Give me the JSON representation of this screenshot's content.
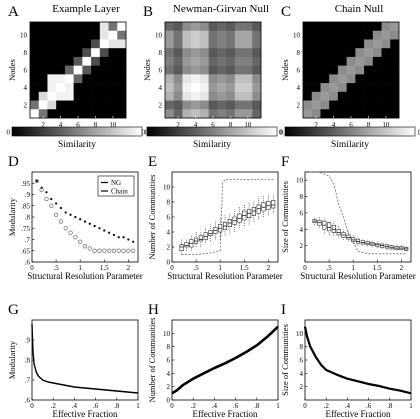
{
  "chart_data": [
    {
      "panel": "A",
      "type": "heatmap",
      "title": "Example Layer",
      "xlabel": "Nodes",
      "ylabel": "Nodes",
      "xticks": [
        2,
        4,
        6,
        8,
        10
      ],
      "yticks": [
        2,
        4,
        6,
        8,
        10
      ],
      "size": 11,
      "matrix": [
        [
          1,
          0.45,
          0,
          0,
          0,
          0,
          0,
          0,
          0,
          0,
          0
        ],
        [
          0.45,
          1,
          0.85,
          0,
          0,
          0,
          0,
          0,
          0,
          0,
          0
        ],
        [
          0,
          0.85,
          1,
          0.95,
          0.95,
          0,
          0,
          0,
          0,
          0,
          0
        ],
        [
          0,
          0,
          0.95,
          1,
          0.95,
          0,
          0,
          0,
          0,
          0,
          0
        ],
        [
          0,
          0,
          0.95,
          0.95,
          1,
          0.4,
          0,
          0,
          0,
          0,
          0
        ],
        [
          0,
          0,
          0,
          0,
          0.4,
          1,
          0.35,
          0,
          0,
          0,
          0
        ],
        [
          0,
          0,
          0,
          0,
          0,
          0.35,
          1,
          0.3,
          0,
          0,
          0
        ],
        [
          0,
          0,
          0,
          0,
          0,
          0,
          0.3,
          1,
          0.3,
          0,
          0
        ],
        [
          0,
          0,
          0,
          0,
          0,
          0,
          0,
          0.3,
          1,
          0.9,
          0.9
        ],
        [
          0,
          0,
          0,
          0,
          0,
          0,
          0,
          0,
          0.9,
          1,
          0.45
        ],
        [
          0,
          0,
          0,
          0,
          0,
          0,
          0,
          0,
          0.9,
          0.45,
          1
        ]
      ],
      "colorbar": {
        "min": "0",
        "max": "1",
        "label": "Similarity"
      }
    },
    {
      "panel": "B",
      "type": "heatmap",
      "title": "Newman-Girvan Null",
      "xlabel": "Nodes",
      "ylabel": "Nodes",
      "xticks": [
        2,
        4,
        6,
        8,
        10
      ],
      "yticks": [
        2,
        4,
        6,
        8,
        10
      ],
      "size": 11,
      "matrix": [
        [
          0.55,
          0.4,
          0.7,
          0.75,
          0.7,
          0.45,
          0.5,
          0.45,
          0.6,
          0.6,
          0.4
        ],
        [
          0.4,
          0.35,
          0.55,
          0.6,
          0.55,
          0.35,
          0.4,
          0.35,
          0.45,
          0.45,
          0.35
        ],
        [
          0.7,
          0.55,
          0.9,
          0.95,
          0.9,
          0.55,
          0.6,
          0.55,
          0.75,
          0.75,
          0.55
        ],
        [
          0.75,
          0.6,
          0.95,
          1,
          0.95,
          0.6,
          0.65,
          0.6,
          0.8,
          0.8,
          0.6
        ],
        [
          0.7,
          0.55,
          0.9,
          0.95,
          0.9,
          0.55,
          0.6,
          0.55,
          0.75,
          0.75,
          0.55
        ],
        [
          0.45,
          0.35,
          0.55,
          0.6,
          0.55,
          0.35,
          0.4,
          0.35,
          0.45,
          0.45,
          0.35
        ],
        [
          0.5,
          0.4,
          0.6,
          0.65,
          0.6,
          0.4,
          0.45,
          0.4,
          0.5,
          0.5,
          0.4
        ],
        [
          0.45,
          0.35,
          0.55,
          0.6,
          0.55,
          0.35,
          0.4,
          0.35,
          0.45,
          0.45,
          0.35
        ],
        [
          0.6,
          0.45,
          0.75,
          0.8,
          0.75,
          0.45,
          0.5,
          0.45,
          0.65,
          0.65,
          0.45
        ],
        [
          0.6,
          0.45,
          0.75,
          0.8,
          0.75,
          0.45,
          0.5,
          0.45,
          0.65,
          0.65,
          0.45
        ],
        [
          0.4,
          0.35,
          0.55,
          0.6,
          0.55,
          0.35,
          0.4,
          0.35,
          0.45,
          0.45,
          0.35
        ]
      ],
      "colorbar": {
        "min": "0",
        "max": "0.12",
        "label": "Similarity"
      }
    },
    {
      "panel": "C",
      "type": "heatmap",
      "title": "Chain Null",
      "xlabel": "Nodes",
      "ylabel": "Nodes",
      "xticks": [
        2,
        4,
        6,
        8,
        10
      ],
      "yticks": [
        2,
        4,
        6,
        8,
        10
      ],
      "size": 11,
      "matrix": [
        [
          0.6,
          0.55,
          0,
          0,
          0,
          0,
          0,
          0,
          0,
          0,
          0
        ],
        [
          0.55,
          0.6,
          0.55,
          0,
          0,
          0,
          0,
          0,
          0,
          0,
          0
        ],
        [
          0,
          0.55,
          0.6,
          0.55,
          0,
          0,
          0,
          0,
          0,
          0,
          0
        ],
        [
          0,
          0,
          0.55,
          0.6,
          0.55,
          0,
          0,
          0,
          0,
          0,
          0
        ],
        [
          0,
          0,
          0,
          0.55,
          0.6,
          0.55,
          0,
          0,
          0,
          0,
          0
        ],
        [
          0,
          0,
          0,
          0,
          0.55,
          0.6,
          0.55,
          0,
          0,
          0,
          0
        ],
        [
          0,
          0,
          0,
          0,
          0,
          0.55,
          0.6,
          0.55,
          0,
          0,
          0
        ],
        [
          0,
          0,
          0,
          0,
          0,
          0,
          0.55,
          0.6,
          0.55,
          0,
          0
        ],
        [
          0,
          0,
          0,
          0,
          0,
          0,
          0,
          0.55,
          0.6,
          0.55,
          0
        ],
        [
          0,
          0,
          0,
          0,
          0,
          0,
          0,
          0,
          0.55,
          0.6,
          0.55
        ],
        [
          0,
          0,
          0,
          0,
          0,
          0,
          0,
          0,
          0,
          0.55,
          0.6
        ]
      ],
      "colorbar": {
        "min": "0",
        "max": "1",
        "label": "Similarity"
      }
    },
    {
      "panel": "D",
      "type": "scatter",
      "xlabel": "Structural Resolution Parameter",
      "ylabel": "Modularity",
      "xlim": [
        0,
        2.2
      ],
      "ylim": [
        0.6,
        1.0
      ],
      "xticks": [
        0,
        0.5,
        1,
        1.5,
        2
      ],
      "yticks": [
        0.6,
        0.65,
        0.7,
        0.75,
        0.8,
        0.85,
        0.9,
        0.95
      ],
      "legend": {
        "position": "top-right",
        "entries": [
          "NG",
          "Chain"
        ]
      },
      "series": [
        {
          "name": "NG",
          "marker": "dot",
          "x": [
            0.1,
            0.2,
            0.3,
            0.4,
            0.5,
            0.6,
            0.7,
            0.8,
            0.9,
            1.0,
            1.1,
            1.2,
            1.3,
            1.4,
            1.5,
            1.6,
            1.7,
            1.8,
            1.9,
            2.0,
            2.1
          ],
          "y": [
            0.96,
            0.93,
            0.91,
            0.88,
            0.86,
            0.84,
            0.82,
            0.81,
            0.8,
            0.79,
            0.78,
            0.77,
            0.76,
            0.75,
            0.74,
            0.73,
            0.72,
            0.71,
            0.71,
            0.7,
            0.69
          ]
        },
        {
          "name": "Chain",
          "marker": "circle",
          "x": [
            0.1,
            0.2,
            0.3,
            0.4,
            0.5,
            0.6,
            0.7,
            0.8,
            0.9,
            1.0,
            1.1,
            1.2,
            1.3,
            1.4,
            1.5,
            1.6,
            1.7,
            1.8,
            1.9,
            2.0,
            2.1
          ],
          "y": [
            0.96,
            0.92,
            0.88,
            0.85,
            0.81,
            0.78,
            0.75,
            0.73,
            0.71,
            0.69,
            0.67,
            0.66,
            0.65,
            0.65,
            0.65,
            0.65,
            0.65,
            0.65,
            0.65,
            0.65,
            0.65
          ]
        }
      ]
    },
    {
      "panel": "E",
      "type": "boxplot",
      "xlabel": "Structural Resolution Parameter",
      "ylabel": "Number of Communities",
      "xlim": [
        0,
        2.2
      ],
      "ylim": [
        0,
        12
      ],
      "xticks": [
        0,
        0.5,
        1,
        1.5,
        2
      ],
      "yticks": [
        0,
        2,
        4,
        6,
        8,
        10
      ],
      "series": [
        {
          "name": "NG",
          "style": "box",
          "x": [
            0.2,
            0.3,
            0.4,
            0.5,
            0.6,
            0.7,
            0.8,
            0.9,
            1.0,
            1.1,
            1.2,
            1.3,
            1.4,
            1.5,
            1.6,
            1.7,
            1.8,
            1.9,
            2.0,
            2.1
          ],
          "q1": [
            1.5,
            2,
            2,
            2.5,
            2.8,
            3,
            3.5,
            3.8,
            4,
            4.3,
            4.7,
            5,
            5.3,
            5.6,
            5.9,
            6.2,
            6.5,
            6.8,
            7,
            7.2
          ],
          "median": [
            2,
            2.2,
            2.5,
            2.8,
            3,
            3.4,
            3.8,
            4.2,
            4.5,
            4.8,
            5.2,
            5.5,
            5.8,
            6.2,
            6.5,
            6.8,
            7.1,
            7.3,
            7.5,
            7.6
          ],
          "q3": [
            2.3,
            2.6,
            3,
            3.2,
            3.5,
            3.9,
            4.2,
            4.6,
            5,
            5.3,
            5.7,
            6,
            6.4,
            6.8,
            7,
            7.3,
            7.6,
            7.9,
            8.1,
            8.2
          ],
          "min": [
            1,
            1.5,
            1.5,
            2,
            2,
            2.5,
            2.8,
            3,
            3,
            3.5,
            3.8,
            4,
            4.5,
            4.8,
            5,
            5.3,
            5.7,
            6,
            6.2,
            6.5
          ],
          "max": [
            3,
            3,
            3.5,
            4,
            4,
            4.5,
            5,
            5.5,
            6,
            6.3,
            6.5,
            7,
            7.3,
            7.6,
            8,
            8.2,
            8.5,
            8.8,
            9,
            9
          ]
        },
        {
          "name": "Chain",
          "style": "dashed",
          "x": [
            0.2,
            0.5,
            0.8,
            1.0,
            1.05,
            1.1,
            1.3,
            1.5,
            1.7,
            1.9,
            2.1
          ],
          "y": [
            1,
            1,
            1.2,
            1.5,
            10.5,
            11,
            11,
            11,
            11,
            11,
            11
          ]
        }
      ]
    },
    {
      "panel": "F",
      "type": "boxplot",
      "xlabel": "Structural Resolution Parameter",
      "ylabel": "Size of Communities",
      "xlim": [
        0,
        2.2
      ],
      "ylim": [
        0,
        11
      ],
      "xticks": [
        0,
        0.5,
        1,
        1.5,
        2
      ],
      "yticks": [
        2,
        4,
        6,
        8,
        10
      ],
      "series": [
        {
          "name": "NG",
          "style": "box",
          "x": [
            0.2,
            0.3,
            0.4,
            0.5,
            0.6,
            0.7,
            0.8,
            0.9,
            1.0,
            1.1,
            1.2,
            1.3,
            1.4,
            1.5,
            1.6,
            1.7,
            1.8,
            1.9,
            2.0,
            2.1
          ],
          "q1": [
            4.8,
            4.5,
            4,
            3.8,
            3.6,
            3.3,
            3,
            2.8,
            2.5,
            2.3,
            2.2,
            2.1,
            2,
            1.9,
            1.8,
            1.7,
            1.6,
            1.5,
            1.5,
            1.4
          ],
          "median": [
            5,
            4.8,
            4.5,
            4.2,
            4,
            3.6,
            3.3,
            3,
            2.7,
            2.5,
            2.4,
            2.3,
            2.2,
            2.1,
            2,
            1.9,
            1.8,
            1.7,
            1.7,
            1.6
          ],
          "q3": [
            5.2,
            5.1,
            5,
            4.8,
            4.5,
            4,
            3.6,
            3.3,
            3,
            2.8,
            2.6,
            2.5,
            2.4,
            2.3,
            2.2,
            2.1,
            2,
            1.9,
            1.9,
            1.8
          ],
          "min": [
            4.5,
            4.2,
            3.5,
            3.3,
            3.2,
            3,
            2.7,
            2.5,
            2.2,
            2,
            2,
            1.9,
            1.8,
            1.7,
            1.6,
            1.5,
            1.5,
            1.4,
            1.4,
            1.3
          ],
          "max": [
            5.5,
            5.5,
            5.3,
            5,
            5,
            4.5,
            4,
            3.8,
            3.3,
            3,
            2.8,
            2.7,
            2.6,
            2.5,
            2.4,
            2.3,
            2.2,
            2.1,
            2,
            2
          ]
        },
        {
          "name": "Chain",
          "style": "dashed",
          "x": [
            0.1,
            0.3,
            0.5,
            0.6,
            0.7,
            0.8,
            0.9,
            1.0,
            1.1,
            1.3,
            1.5,
            1.7,
            1.9,
            2.1
          ],
          "y": [
            11,
            11,
            10.5,
            9.5,
            7,
            5.5,
            3.5,
            2.5,
            1.3,
            1,
            1,
            1,
            1,
            1
          ]
        }
      ]
    },
    {
      "panel": "G",
      "type": "line",
      "xlabel": "Effective Fraction",
      "ylabel": "Modularity",
      "xlim": [
        0,
        1
      ],
      "ylim": [
        0.6,
        1.0
      ],
      "xticks": [
        0,
        0.2,
        0.4,
        0.6,
        0.8,
        1
      ],
      "yticks": [
        0.6,
        0.7,
        0.8,
        0.9
      ],
      "series": [
        {
          "x": [
            0,
            0.005,
            0.01,
            0.02,
            0.04,
            0.06,
            0.1,
            0.15,
            0.2,
            0.3,
            0.4,
            0.5,
            0.6,
            0.7,
            0.8,
            0.9,
            1.0
          ],
          "y": [
            0.98,
            0.9,
            0.84,
            0.78,
            0.74,
            0.72,
            0.7,
            0.69,
            0.685,
            0.675,
            0.665,
            0.66,
            0.655,
            0.65,
            0.645,
            0.64,
            0.635
          ]
        }
      ]
    },
    {
      "panel": "H",
      "type": "line",
      "xlabel": "Effective Fraction",
      "ylabel": "Number of Communities",
      "xlim": [
        0,
        1
      ],
      "ylim": [
        0,
        12
      ],
      "xticks": [
        0,
        0.2,
        0.4,
        0.6,
        0.8,
        1
      ],
      "yticks": [
        0,
        2,
        4,
        6,
        8,
        10
      ],
      "series": [
        {
          "x": [
            0,
            0.05,
            0.1,
            0.2,
            0.3,
            0.4,
            0.5,
            0.6,
            0.7,
            0.8,
            0.9,
            1.0
          ],
          "y": [
            1,
            1.5,
            2.2,
            3.2,
            4,
            4.8,
            5.5,
            6.3,
            7.2,
            8.2,
            9.5,
            11
          ]
        }
      ]
    },
    {
      "panel": "I",
      "type": "line",
      "xlabel": "Effective Fraction",
      "ylabel": "Size of Communities",
      "xlim": [
        0,
        1
      ],
      "ylim": [
        0,
        12
      ],
      "xticks": [
        0,
        0.2,
        0.4,
        0.6,
        0.8,
        1
      ],
      "yticks": [
        2,
        4,
        6,
        8,
        10
      ],
      "series": [
        {
          "x": [
            0,
            0.02,
            0.05,
            0.1,
            0.15,
            0.2,
            0.3,
            0.4,
            0.5,
            0.6,
            0.7,
            0.8,
            0.9,
            1.0
          ],
          "y": [
            11,
            9.5,
            8,
            6.5,
            5.3,
            4.5,
            3.8,
            3.2,
            2.8,
            2.4,
            2.1,
            1.7,
            1.4,
            1
          ]
        }
      ]
    }
  ]
}
